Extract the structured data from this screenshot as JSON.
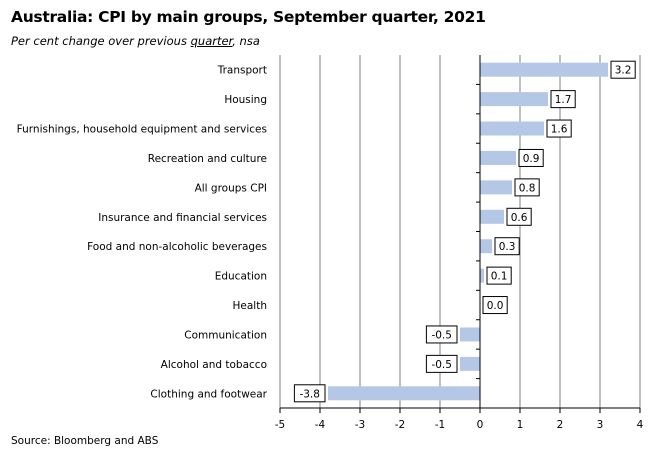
{
  "header": {
    "title": "Australia: CPI by main groups, September quarter, 2021",
    "subtitle_pre": "Per cent change over previous ",
    "subtitle_underlined": "quarter",
    "subtitle_post": ", nsa"
  },
  "footer": {
    "source": "Source: Bloomberg and ABS"
  },
  "colors": {
    "bar": "#b4c7e7",
    "grid": "#808080",
    "axis": "#000000"
  },
  "chart_data": {
    "type": "bar",
    "orientation": "horizontal",
    "title": "Australia: CPI by main groups, September quarter, 2021",
    "subtitle": "Per cent change over previous quarter, nsa",
    "categories": [
      "Transport",
      "Housing",
      "Furnishings, household equipment and services",
      "Recreation and culture",
      "All groups CPI",
      "Insurance and financial services",
      "Food and non-alcoholic beverages",
      "Education",
      "Health",
      "Communication",
      "Alcohol and tobacco",
      "Clothing and footwear"
    ],
    "values": [
      3.2,
      1.7,
      1.6,
      0.9,
      0.8,
      0.6,
      0.3,
      0.1,
      0.0,
      -0.5,
      -0.5,
      -3.8
    ],
    "data_labels": [
      "3.2",
      "1.7",
      "1.6",
      "0.9",
      "0.8",
      "0.6",
      "0.3",
      "0.1",
      "0.0",
      "-0.5",
      "-0.5",
      "-3.8"
    ],
    "xlim": [
      -5,
      4
    ],
    "xticks": [
      "-5",
      "-4",
      "-3",
      "-2",
      "-1",
      "0",
      "1",
      "2",
      "3",
      "4"
    ],
    "grid": true,
    "legend": "none"
  }
}
